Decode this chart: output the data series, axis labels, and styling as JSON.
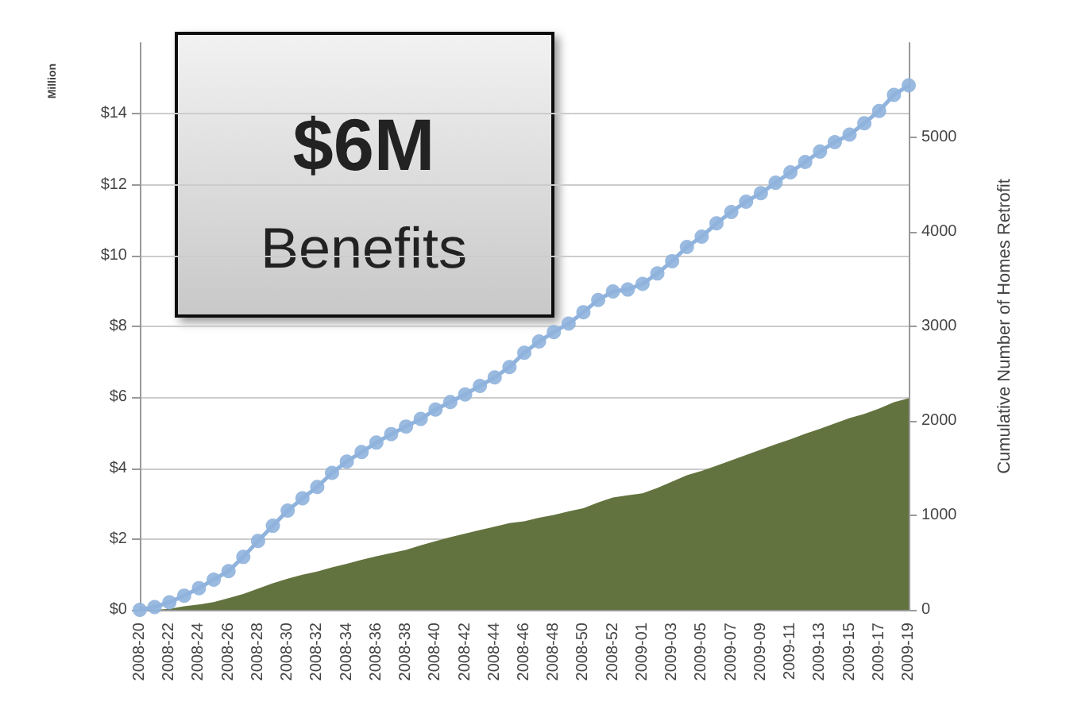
{
  "chart_data": {
    "type": "line",
    "categories": [
      "2008-20",
      null,
      "2008-22",
      null,
      "2008-24",
      null,
      "2008-26",
      null,
      "2008-28",
      null,
      "2008-30",
      null,
      "2008-32",
      null,
      "2008-34",
      null,
      "2008-36",
      null,
      "2008-38",
      null,
      "2008-40",
      null,
      "2008-42",
      null,
      "2008-44",
      null,
      "2008-46",
      null,
      "2008-48",
      null,
      "2008-50",
      null,
      "2008-52",
      null,
      "2009-01",
      null,
      "2009-03",
      null,
      "2009-05",
      null,
      "2009-07",
      null,
      "2009-09",
      null,
      "2009-11",
      null,
      "2009-13",
      null,
      "2009-15",
      null,
      "2009-17",
      null,
      "2009-19"
    ],
    "series": [
      {
        "type": "area",
        "color": "#63733f",
        "values": [
          0,
          0,
          0.03,
          0.1,
          0.15,
          0.22,
          0.33,
          0.45,
          0.6,
          0.75,
          0.88,
          0.99,
          1.08,
          1.2,
          1.3,
          1.41,
          1.51,
          1.6,
          1.69,
          1.82,
          1.94,
          2.05,
          2.15,
          2.25,
          2.35,
          2.45,
          2.5,
          2.6,
          2.68,
          2.78,
          2.87,
          3.03,
          3.17,
          3.23,
          3.29,
          3.44,
          3.62,
          3.8,
          3.92,
          4.07,
          4.22,
          4.37,
          4.52,
          4.67,
          4.81,
          4.97,
          5.11,
          5.26,
          5.41,
          5.53,
          5.68,
          5.86,
          5.97
        ]
      },
      {
        "axis": "y2",
        "marker": "circle",
        "color": "#8fb3dd",
        "values": [
          0,
          30,
          80,
          150,
          230,
          320,
          410,
          560,
          730,
          890,
          1050,
          1180,
          1300,
          1450,
          1570,
          1670,
          1770,
          1860,
          1940,
          2020,
          2120,
          2200,
          2280,
          2370,
          2460,
          2570,
          2720,
          2840,
          2940,
          3030,
          3150,
          3280,
          3370,
          3390,
          3450,
          3560,
          3690,
          3840,
          3950,
          4090,
          4210,
          4320,
          4410,
          4520,
          4630,
          4740,
          4850,
          4950,
          5030,
          5150,
          5280,
          5450,
          5550
        ]
      }
    ],
    "ylabel": "Million",
    "y2label": "Cumulative Number of Homes Retrofit",
    "ylim": [
      0,
      16
    ],
    "yticks": [
      {
        "value": 0,
        "label": "$0"
      },
      {
        "value": 2,
        "label": "$2"
      },
      {
        "value": 4,
        "label": "$4"
      },
      {
        "value": 6,
        "label": "$6"
      },
      {
        "value": 8,
        "label": "$8"
      },
      {
        "value": 10,
        "label": "$10"
      },
      {
        "value": 12,
        "label": "$12"
      },
      {
        "value": 14,
        "label": "$14"
      }
    ],
    "y2lim": [
      0,
      6000
    ],
    "y2ticks": [
      0,
      1000,
      2000,
      3000,
      4000,
      5000
    ],
    "annotations": [
      "$6M",
      "Benefits"
    ],
    "grid": "y"
  }
}
